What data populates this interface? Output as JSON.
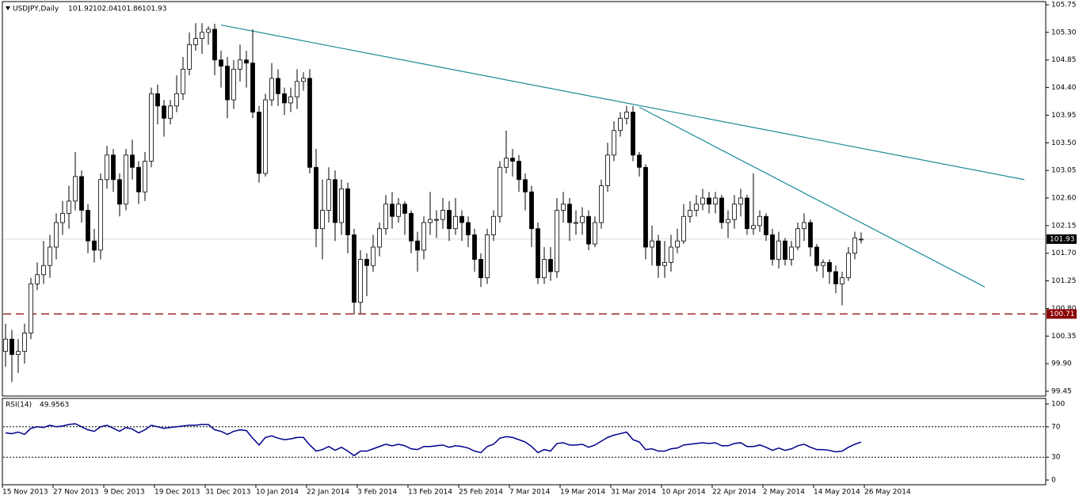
{
  "chart_data": {
    "type": "candlestick",
    "symbol": "USDJPY,Daily",
    "ylim": [
      99.45,
      105.75
    ],
    "yticks": [
      105.75,
      {
        "value": 105.3,
        "label": "105.30"
      },
      104.85,
      {
        "value": 104.4,
        "label": "104.40"
      },
      103.95,
      {
        "value": 103.5,
        "label": "103.50"
      },
      103.05,
      {
        "value": 102.6,
        "label": "102.60"
      },
      102.15,
      {
        "value": 101.7,
        "label": "101.70"
      },
      101.25,
      {
        "value": 100.8,
        "label": "100.80"
      },
      100.35,
      {
        "value": 99.9,
        "label": "99.90"
      },
      99.45
    ],
    "xticks": [
      {
        "value": 0,
        "label": "15 Nov 2013"
      },
      {
        "value": 8,
        "label": "27 Nov 2013"
      },
      {
        "value": 16,
        "label": "9 Dec 2013"
      },
      {
        "value": 24,
        "label": "19 Dec 2013"
      },
      {
        "value": 32,
        "label": "31 Dec 2013"
      },
      {
        "value": 40,
        "label": "10 Jan 2014"
      },
      {
        "value": 48,
        "label": "22 Jan 2014"
      },
      {
        "value": 56,
        "label": "3 Feb 2014"
      },
      {
        "value": 64,
        "label": "13 Feb 2014"
      },
      {
        "value": 72,
        "label": "25 Feb 2014"
      },
      {
        "value": 80,
        "label": "7 Mar 2014"
      },
      {
        "value": 88,
        "label": "19 Mar 2014"
      },
      {
        "value": 96,
        "label": "31 Mar 2014"
      },
      {
        "value": 104,
        "label": "10 Apr 2014"
      },
      {
        "value": 112,
        "label": "22 Apr 2014"
      },
      {
        "value": 120,
        "label": "2 May 2014"
      },
      {
        "value": 128,
        "label": "14 May 2014"
      },
      {
        "value": 136,
        "label": "26 May 2014"
      }
    ],
    "open": [
      100.1,
      100.3,
      100.05,
      100.1,
      100.4,
      101.2,
      101.35,
      101.5,
      101.8,
      102.2,
      102.35,
      102.55,
      102.95,
      102.4,
      101.9,
      101.75,
      102.9,
      103.3,
      102.9,
      102.5,
      103.3,
      103.1,
      102.7,
      103.2,
      104.3,
      104.1,
      103.9,
      104.1,
      104.3,
      104.7,
      105.1,
      105.2,
      105.3,
      105.35,
      104.85,
      104.75,
      104.2,
      104.7,
      104.85,
      104.8,
      104.0,
      103.0,
      104.2,
      104.55,
      104.3,
      104.15,
      104.25,
      104.5,
      104.55,
      103.1,
      102.1,
      102.4,
      102.9,
      102.2,
      102.75,
      102.0,
      100.9,
      101.6,
      101.5,
      101.8,
      102.1,
      102.5,
      102.3,
      102.5,
      102.35,
      101.9,
      101.75,
      102.2,
      102.25,
      102.25,
      102.4,
      102.1,
      102.3,
      102.2,
      102.0,
      101.6,
      101.3,
      102.0,
      102.3,
      103.1,
      103.25,
      103.2,
      102.9,
      102.7,
      102.1,
      101.3,
      101.6,
      101.4,
      102.4,
      102.5,
      102.2,
      102.2,
      102.3,
      101.85,
      102.2,
      102.8,
      103.3,
      103.7,
      103.9,
      104.0,
      103.3,
      103.1,
      101.8,
      101.9,
      101.5,
      101.55,
      101.8,
      101.9,
      102.3,
      102.4,
      102.5,
      102.6,
      102.5,
      102.6,
      102.2,
      102.25,
      102.5,
      102.6,
      102.1,
      102.15,
      102.3,
      102.0,
      101.6,
      101.9,
      101.6,
      101.8,
      102.1,
      102.2,
      101.8,
      101.5,
      101.55,
      101.4,
      101.2,
      101.3,
      101.7,
      101.92
    ],
    "high": [
      100.55,
      100.45,
      100.3,
      100.55,
      101.3,
      101.55,
      101.9,
      102.0,
      102.35,
      102.55,
      102.8,
      103.35,
      103.05,
      102.5,
      102.1,
      103.0,
      103.45,
      103.4,
      103.0,
      103.4,
      103.55,
      103.2,
      103.35,
      104.4,
      104.45,
      104.2,
      104.2,
      104.6,
      104.9,
      105.3,
      105.45,
      105.45,
      105.4,
      105.44,
      105.0,
      104.9,
      104.85,
      105.1,
      105.0,
      105.35,
      104.1,
      104.3,
      104.8,
      104.7,
      104.4,
      104.4,
      104.7,
      104.65,
      104.7,
      103.4,
      102.9,
      103.1,
      103.05,
      102.9,
      102.85,
      102.1,
      101.75,
      101.7,
      102.0,
      102.2,
      102.65,
      102.7,
      102.6,
      102.55,
      102.4,
      102.05,
      102.3,
      102.7,
      102.4,
      102.6,
      102.55,
      102.6,
      102.4,
      102.3,
      102.1,
      101.7,
      102.1,
      102.4,
      103.2,
      103.7,
      103.4,
      103.3,
      103.0,
      102.8,
      102.2,
      101.8,
      101.8,
      102.6,
      102.7,
      102.6,
      102.4,
      102.45,
      102.4,
      102.3,
      102.9,
      103.5,
      103.85,
      104.0,
      104.1,
      104.1,
      103.35,
      103.15,
      102.15,
      102.0,
      101.9,
      102.0,
      102.1,
      102.5,
      102.55,
      102.65,
      102.75,
      102.7,
      102.7,
      102.65,
      102.4,
      102.65,
      102.75,
      102.65,
      103.0,
      102.4,
      102.35,
      102.1,
      102.05,
      101.95,
      101.9,
      102.2,
      102.35,
      102.25,
      101.85,
      101.6,
      101.6,
      101.5,
      101.4,
      101.8,
      102.05,
      102.04
    ],
    "low": [
      99.85,
      99.6,
      99.75,
      99.9,
      100.3,
      101.1,
      101.2,
      101.3,
      101.6,
      102.0,
      102.1,
      102.4,
      102.2,
      101.7,
      101.55,
      101.6,
      102.75,
      102.7,
      102.3,
      102.4,
      102.9,
      102.5,
      102.55,
      103.1,
      103.8,
      103.6,
      103.8,
      104.0,
      104.2,
      104.6,
      105.0,
      104.95,
      105.1,
      104.6,
      104.4,
      103.9,
      104.05,
      104.5,
      104.4,
      103.9,
      102.85,
      102.95,
      104.1,
      104.1,
      103.95,
      104.0,
      104.05,
      104.35,
      103.0,
      101.8,
      101.6,
      102.2,
      101.9,
      102.0,
      101.7,
      100.7,
      100.72,
      101.0,
      101.4,
      101.65,
      102.0,
      102.1,
      102.2,
      102.0,
      101.7,
      101.4,
      101.6,
      102.0,
      101.95,
      102.1,
      101.9,
      102.0,
      101.9,
      101.8,
      101.4,
      101.15,
      101.2,
      101.9,
      102.2,
      103.0,
      102.95,
      102.7,
      102.4,
      101.8,
      101.2,
      101.2,
      101.25,
      101.3,
      102.2,
      101.9,
      102.0,
      102.0,
      101.75,
      101.8,
      102.1,
      102.7,
      103.2,
      103.6,
      103.8,
      103.2,
      102.95,
      101.6,
      101.5,
      101.3,
      101.3,
      101.4,
      101.7,
      101.85,
      102.2,
      102.3,
      102.4,
      102.35,
      102.35,
      102.1,
      101.95,
      102.1,
      102.3,
      102.0,
      102.0,
      102.05,
      101.9,
      101.5,
      101.45,
      101.5,
      101.5,
      101.75,
      101.9,
      101.65,
      101.4,
      101.3,
      101.2,
      101.05,
      100.85,
      101.25,
      101.6,
      101.86
    ],
    "close": [
      100.3,
      100.05,
      100.1,
      100.4,
      101.2,
      101.35,
      101.5,
      101.8,
      102.2,
      102.35,
      102.55,
      102.95,
      102.4,
      101.9,
      101.75,
      102.9,
      103.3,
      102.9,
      102.5,
      103.3,
      103.1,
      102.7,
      103.2,
      104.3,
      104.1,
      103.9,
      104.1,
      104.3,
      104.7,
      105.1,
      105.2,
      105.3,
      105.35,
      104.85,
      104.75,
      104.2,
      104.7,
      104.85,
      104.8,
      104.0,
      103.0,
      104.2,
      104.55,
      104.3,
      104.15,
      104.25,
      104.5,
      104.55,
      103.1,
      102.1,
      102.4,
      102.9,
      102.2,
      102.75,
      102.0,
      100.9,
      101.6,
      101.5,
      101.8,
      102.1,
      102.5,
      102.3,
      102.5,
      102.35,
      101.9,
      101.75,
      102.2,
      102.25,
      102.25,
      102.4,
      102.1,
      102.3,
      102.2,
      102.0,
      101.6,
      101.3,
      102.0,
      102.3,
      103.1,
      103.25,
      103.2,
      102.9,
      102.7,
      102.1,
      101.3,
      101.6,
      101.4,
      102.4,
      102.5,
      102.2,
      102.2,
      102.3,
      101.85,
      102.2,
      102.8,
      103.3,
      103.7,
      103.9,
      104.0,
      103.3,
      103.1,
      101.8,
      101.9,
      101.5,
      101.55,
      101.8,
      101.9,
      102.3,
      102.4,
      102.5,
      102.6,
      102.5,
      102.6,
      102.2,
      102.25,
      102.5,
      102.6,
      102.1,
      102.15,
      102.3,
      102.0,
      101.6,
      101.9,
      101.6,
      101.8,
      102.1,
      102.2,
      101.8,
      101.5,
      101.55,
      101.4,
      101.2,
      101.3,
      101.7,
      101.95,
      101.93
    ],
    "support": 100.71,
    "support_color": "#8b0000",
    "trend_color": "#1a8a96",
    "trendlines": [
      {
        "start": [
          34,
          105.42
        ],
        "end": [
          160.75,
          102.9
        ]
      },
      {
        "start": [
          100,
          104.08
        ],
        "end": [
          154.5,
          101.15
        ]
      }
    ],
    "rsi": {
      "title": "RSI(14)",
      "color": "#00008b",
      "ylim": [
        0,
        100
      ],
      "yticks": [
        100,
        70,
        30,
        0
      ],
      "levels": [
        70,
        30
      ],
      "values": [
        62,
        61,
        63,
        60,
        68,
        70,
        69,
        72,
        70,
        71,
        73,
        74,
        70,
        66,
        64,
        70,
        72,
        68,
        64,
        69,
        67,
        62,
        66,
        72,
        70,
        68,
        69,
        70,
        71,
        72,
        72,
        73,
        73,
        66,
        64,
        60,
        64,
        66,
        65,
        55,
        46,
        56,
        58,
        55,
        53,
        54,
        56,
        56,
        46,
        38,
        40,
        44,
        39,
        43,
        38,
        32,
        38,
        38,
        41,
        44,
        47,
        45,
        47,
        45,
        41,
        40,
        44,
        44,
        45,
        46,
        43,
        45,
        44,
        42,
        38,
        36,
        44,
        47,
        55,
        57,
        56,
        53,
        50,
        44,
        36,
        40,
        38,
        48,
        49,
        46,
        46,
        47,
        43,
        46,
        51,
        56,
        59,
        61,
        63,
        53,
        50,
        40,
        41,
        38,
        38,
        41,
        42,
        46,
        47,
        48,
        49,
        48,
        49,
        45,
        45,
        48,
        49,
        44,
        44,
        46,
        43,
        39,
        42,
        39,
        41,
        45,
        47,
        43,
        40,
        40,
        39,
        37,
        38,
        43,
        47,
        49.9563
      ]
    }
  }
}
